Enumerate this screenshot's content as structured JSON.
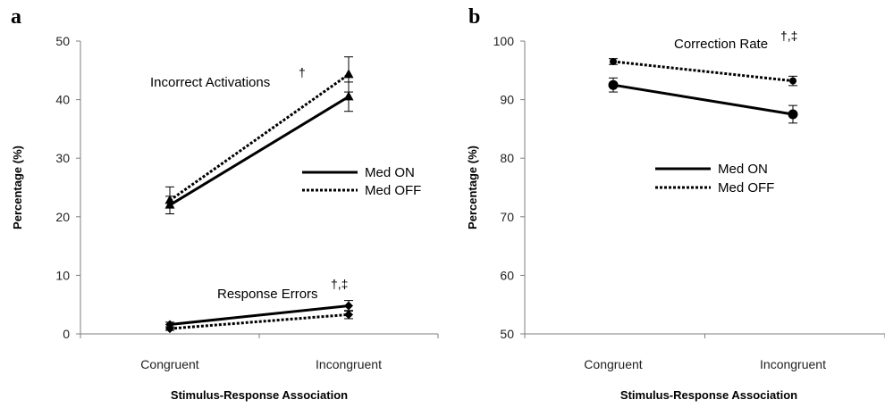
{
  "chart_data": [
    {
      "panel": "a",
      "type": "line",
      "categories": [
        "Congruent",
        "Incongruent"
      ],
      "xlabel": "Stimulus-Response Association",
      "ylabel": "Percentage (%)",
      "ylim": [
        0,
        50
      ],
      "yticks": [
        0,
        10,
        20,
        30,
        40,
        50
      ],
      "legend": {
        "placement": "right-middle",
        "entries": [
          "Med ON",
          "Med OFF"
        ]
      },
      "series": [
        {
          "name": "Med ON",
          "group": "Incorrect Activations",
          "line_style": "solid",
          "marker": "triangle",
          "values": [
            22.0,
            40.5
          ],
          "errors": [
            1.5,
            2.5
          ]
        },
        {
          "name": "Med OFF",
          "group": "Incorrect Activations",
          "line_style": "dotted",
          "marker": "triangle",
          "values": [
            22.8,
            44.3
          ],
          "errors": [
            2.3,
            3.0
          ]
        },
        {
          "name": "Med ON",
          "group": "Response Errors",
          "line_style": "solid",
          "marker": "diamond",
          "values": [
            1.6,
            4.8
          ],
          "errors": [
            0.4,
            0.9
          ]
        },
        {
          "name": "Med OFF",
          "group": "Response Errors",
          "line_style": "dotted",
          "marker": "diamond",
          "values": [
            0.9,
            3.3
          ],
          "errors": [
            0.3,
            0.7
          ]
        }
      ],
      "annotations": [
        {
          "text": "Incorrect Activations",
          "symbols": "†"
        },
        {
          "text": "Response Errors",
          "symbols": "†,‡"
        }
      ]
    },
    {
      "panel": "b",
      "type": "line",
      "categories": [
        "Congruent",
        "Incongruent"
      ],
      "xlabel": "Stimulus-Response Association",
      "ylabel": "Percentage (%)",
      "ylim": [
        50,
        100
      ],
      "yticks": [
        50,
        60,
        70,
        80,
        90,
        100
      ],
      "legend": {
        "placement": "middle",
        "entries": [
          "Med ON",
          "Med OFF"
        ]
      },
      "series": [
        {
          "name": "Med ON",
          "group": "Correction Rate",
          "line_style": "solid",
          "marker": "circle",
          "values": [
            92.5,
            87.5
          ],
          "errors": [
            1.2,
            1.5
          ]
        },
        {
          "name": "Med OFF",
          "group": "Correction Rate",
          "line_style": "dotted",
          "marker": "circle",
          "values": [
            96.5,
            93.2
          ],
          "errors": [
            0.5,
            0.8
          ]
        }
      ],
      "annotations": [
        {
          "text": "Correction Rate",
          "symbols": "†,‡"
        }
      ]
    }
  ]
}
